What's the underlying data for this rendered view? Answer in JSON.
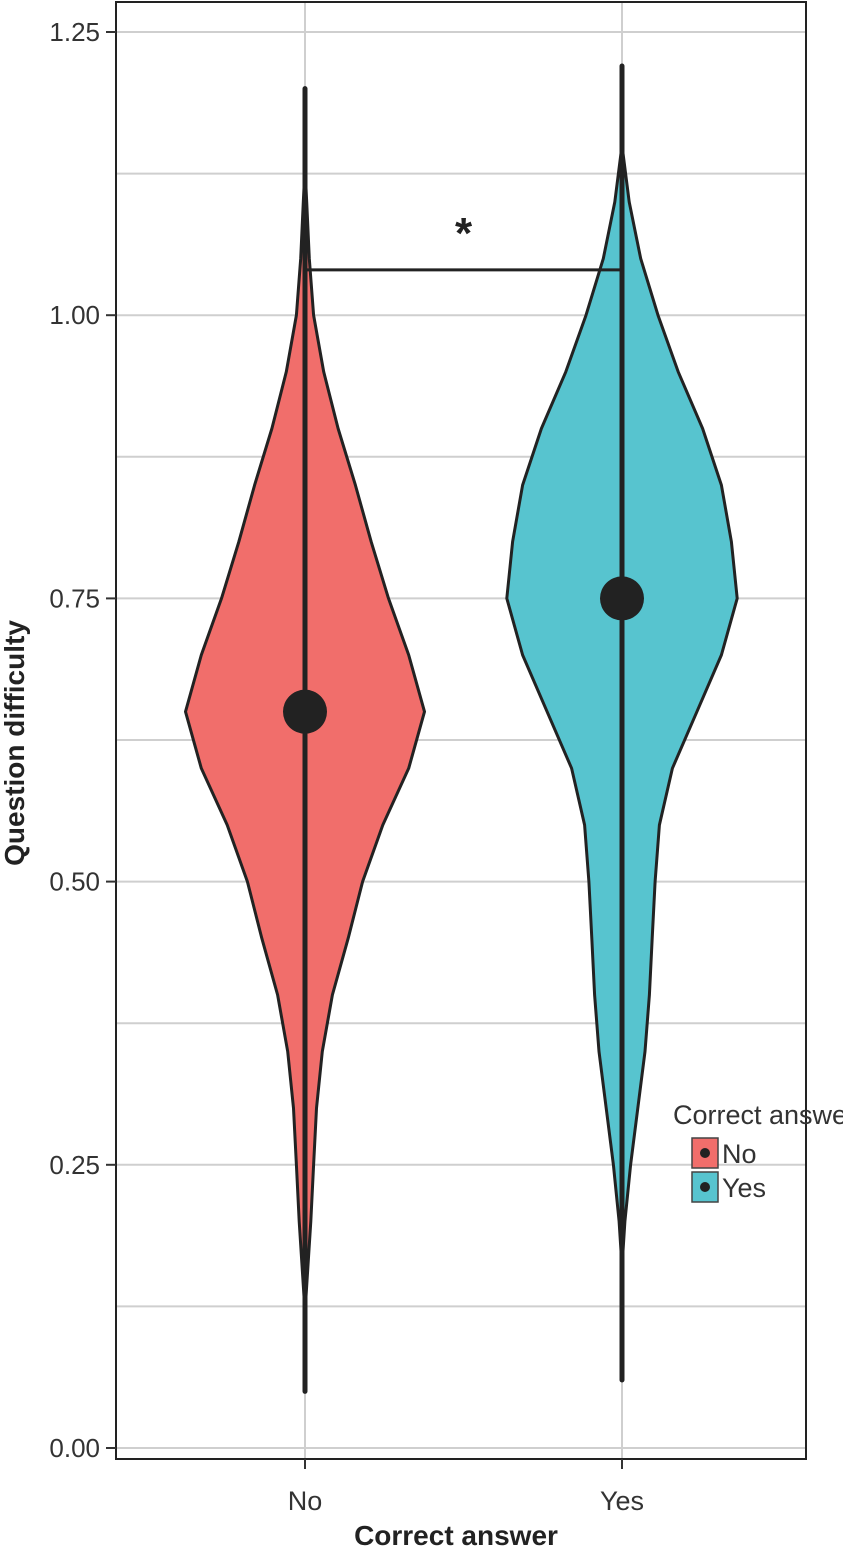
{
  "chart_data": {
    "type": "violin",
    "title": "",
    "xlabel": "Correct answer",
    "ylabel": "Question difficulty",
    "categories": [
      "No",
      "Yes"
    ],
    "ylim": [
      0,
      1.25
    ],
    "yticks": [
      0.0,
      0.25,
      0.5,
      0.75,
      1.0,
      1.25
    ],
    "ytick_labels": [
      "0.00",
      "0.25",
      "0.50",
      "0.75",
      "1.00",
      "1.25"
    ],
    "grid": true,
    "legend": {
      "title": "Correct answer",
      "placement": "right",
      "entries": [
        "No",
        "Yes"
      ]
    },
    "colors": {
      "No": "#f16e6b",
      "Yes": "#57c4cf",
      "outline": "#222222",
      "grid": "#cfcfcf"
    },
    "series": [
      {
        "name": "No",
        "mean": 0.65,
        "range_line": [
          0.25,
          1.0
        ],
        "whisker": [
          0.05,
          1.2
        ],
        "density": [
          [
            0.12,
            0.0
          ],
          [
            0.16,
            0.02
          ],
          [
            0.2,
            0.04
          ],
          [
            0.25,
            0.06
          ],
          [
            0.3,
            0.08
          ],
          [
            0.35,
            0.12
          ],
          [
            0.4,
            0.19
          ],
          [
            0.45,
            0.3
          ],
          [
            0.5,
            0.4
          ],
          [
            0.55,
            0.54
          ],
          [
            0.6,
            0.72
          ],
          [
            0.65,
            0.83
          ],
          [
            0.7,
            0.72
          ],
          [
            0.75,
            0.58
          ],
          [
            0.8,
            0.46
          ],
          [
            0.85,
            0.35
          ],
          [
            0.9,
            0.23
          ],
          [
            0.95,
            0.13
          ],
          [
            1.0,
            0.06
          ],
          [
            1.05,
            0.03
          ],
          [
            1.1,
            0.012
          ],
          [
            1.13,
            0.0
          ]
        ]
      },
      {
        "name": "Yes",
        "mean": 0.75,
        "range_line": [
          0.28,
          1.0
        ],
        "whisker": [
          0.06,
          1.22
        ],
        "density": [
          [
            0.16,
            0.0
          ],
          [
            0.2,
            0.02
          ],
          [
            0.25,
            0.06
          ],
          [
            0.3,
            0.11
          ],
          [
            0.35,
            0.16
          ],
          [
            0.4,
            0.19
          ],
          [
            0.45,
            0.21
          ],
          [
            0.5,
            0.23
          ],
          [
            0.55,
            0.26
          ],
          [
            0.6,
            0.35
          ],
          [
            0.65,
            0.52
          ],
          [
            0.7,
            0.69
          ],
          [
            0.75,
            0.8
          ],
          [
            0.8,
            0.76
          ],
          [
            0.85,
            0.69
          ],
          [
            0.9,
            0.56
          ],
          [
            0.95,
            0.39
          ],
          [
            1.0,
            0.25
          ],
          [
            1.05,
            0.13
          ],
          [
            1.1,
            0.05
          ],
          [
            1.15,
            0.0
          ]
        ]
      }
    ],
    "comparison": {
      "between": [
        "No",
        "Yes"
      ],
      "y": 1.04,
      "label": "*"
    }
  }
}
